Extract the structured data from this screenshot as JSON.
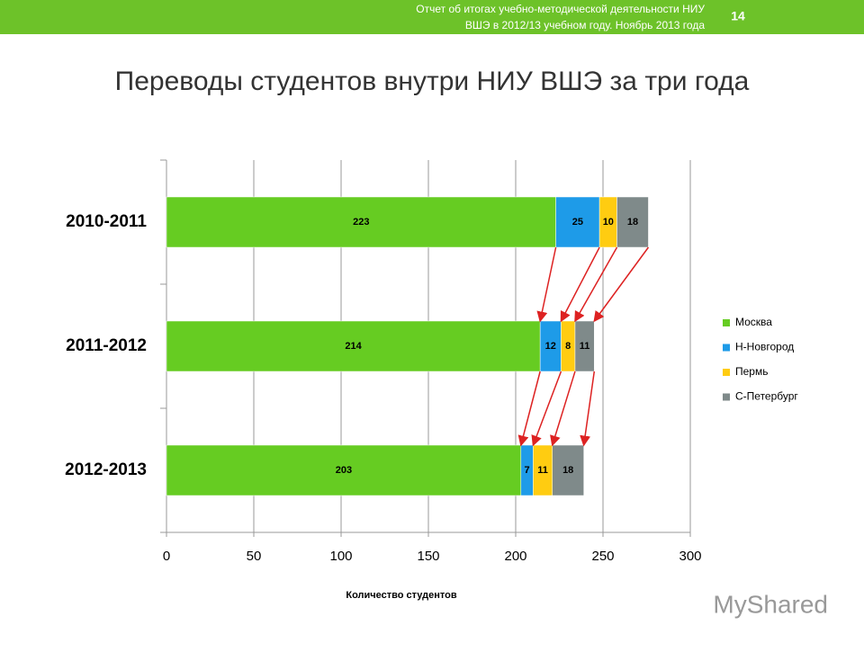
{
  "header": {
    "lines": [
      "Отчет об итогах учебно-методической деятельности НИУ",
      "ВШЭ в 2012/13 учебном году. Ноябрь 2013 года"
    ],
    "page": "14"
  },
  "watermark": "MyShared",
  "chart_data": {
    "type": "stacked-bar-horizontal",
    "title": "Переводы студентов внутри НИУ ВШЭ за три года",
    "x_label": "Количество студентов",
    "categories": [
      "2010-2011",
      "2011-2012",
      "2012-2013"
    ],
    "series": [
      {
        "name": "Москва",
        "color": "#66cc22",
        "values": [
          223,
          214,
          203
        ]
      },
      {
        "name": "Н-Новгород",
        "color": "#1e9be8",
        "values": [
          25,
          12,
          7
        ]
      },
      {
        "name": "Пермь",
        "color": "#ffcc11",
        "values": [
          10,
          8,
          11
        ]
      },
      {
        "name": "С-Петербург",
        "color": "#7f8a8a",
        "values": [
          18,
          11,
          18
        ]
      }
    ],
    "xlim": [
      0,
      300
    ],
    "xticks": [
      0,
      50,
      100,
      150,
      200,
      250,
      300
    ],
    "grid": true,
    "legend": "right",
    "arrow_color": "#dd2222"
  }
}
